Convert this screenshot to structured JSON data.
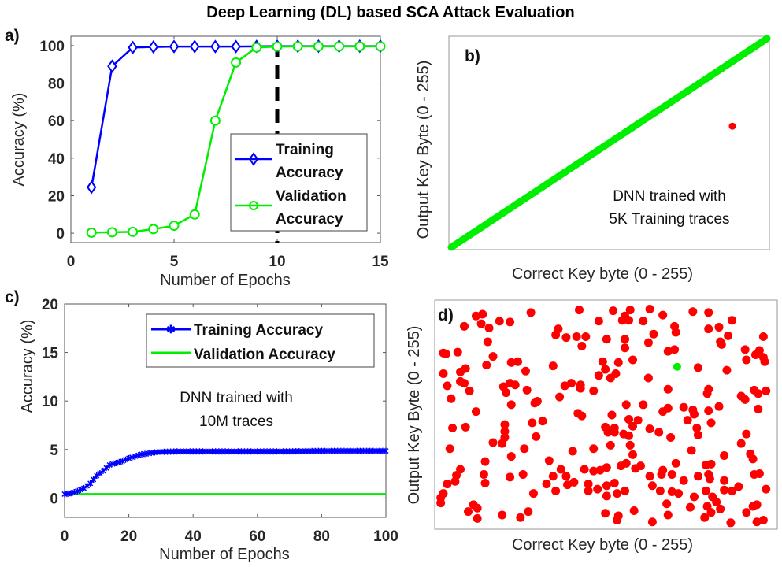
{
  "title": "Deep Learning (DL) based SCA Attack Evaluation",
  "colors": {
    "training": "#0000ff",
    "validation": "#00ee00",
    "wrong": "#ff0000",
    "correct": "#00ee00"
  },
  "chart_data": [
    {
      "panel": "a)",
      "type": "line",
      "xlabel": "Number of Epochs",
      "ylabel": "Accuracy (%)",
      "xlim": [
        0,
        15
      ],
      "ylim": [
        -5,
        105
      ],
      "xticks": [
        0,
        5,
        10,
        15
      ],
      "yticks": [
        0,
        20,
        40,
        60,
        80,
        100
      ],
      "x": [
        1,
        2,
        3,
        4,
        5,
        6,
        7,
        8,
        9,
        10,
        11,
        12,
        13,
        14,
        15
      ],
      "series": [
        {
          "name": "Training Accuracy",
          "legend_lines": [
            "Training",
            "Accuracy"
          ],
          "marker": "diamond",
          "values": [
            24.5,
            89,
            99,
            99.3,
            99.5,
            99.5,
            99.5,
            99.5,
            99.6,
            99.7,
            99.7,
            99.7,
            99.7,
            99.7,
            99.7
          ]
        },
        {
          "name": "Validation Accuracy",
          "legend_lines": [
            "Validation",
            "Accuracy"
          ],
          "marker": "circle",
          "values": [
            0.3,
            0.5,
            0.7,
            2.2,
            4,
            10,
            60,
            91,
            99,
            99.5,
            99.6,
            99.6,
            99.6,
            99.6,
            99.6
          ]
        }
      ],
      "vline": {
        "x": 10,
        "style": "dashed"
      },
      "legend": "right"
    },
    {
      "panel": "b)",
      "type": "scatter",
      "xlabel": "Correct Key byte (0 - 255)",
      "ylabel": "Output Key Byte (0 - 255)",
      "xlim": [
        0,
        255
      ],
      "ylim": [
        0,
        255
      ],
      "annotation": [
        "DNN trained with",
        "5K Training traces"
      ],
      "correct": "diagonal x = y for all key bytes 0-255",
      "wrong_points": [
        [
          227,
          148
        ]
      ]
    },
    {
      "panel": "c)",
      "type": "line",
      "xlabel": "Number of Epochs",
      "ylabel": "Accuracy (%)",
      "xlim": [
        0,
        100
      ],
      "ylim": [
        -2,
        20
      ],
      "xticks": [
        0,
        20,
        40,
        60,
        80,
        100
      ],
      "yticks": [
        0,
        5,
        10,
        15,
        20
      ],
      "annotation": [
        "DNN trained with",
        "10M traces"
      ],
      "legend": "top-right",
      "x": [
        0,
        2,
        4,
        6,
        8,
        10,
        12,
        14,
        16,
        18,
        20,
        22,
        24,
        26,
        28,
        30,
        35,
        40,
        50,
        60,
        70,
        80,
        90,
        100
      ],
      "series": [
        {
          "name": "Training Accuracy",
          "marker": "asterisk",
          "values": [
            0.4,
            0.5,
            0.7,
            1.0,
            1.5,
            2.3,
            2.8,
            3.4,
            3.6,
            3.8,
            4.1,
            4.3,
            4.5,
            4.6,
            4.7,
            4.75,
            4.8,
            4.8,
            4.8,
            4.8,
            4.8,
            4.85,
            4.85,
            4.85
          ]
        },
        {
          "name": "Validation Accuracy",
          "marker": "none",
          "values": [
            0.4,
            0.4,
            0.4,
            0.4,
            0.4,
            0.4,
            0.4,
            0.4,
            0.4,
            0.4,
            0.4,
            0.4,
            0.4,
            0.4,
            0.4,
            0.4,
            0.4,
            0.4,
            0.4,
            0.4,
            0.4,
            0.4,
            0.4,
            0.4
          ]
        }
      ]
    },
    {
      "panel": "d)",
      "type": "scatter",
      "xlabel": "Correct Key byte (0 - 255)",
      "ylabel": "Output Key Byte (0 - 255)",
      "xlim": [
        0,
        255
      ],
      "ylim": [
        0,
        255
      ],
      "correct_points": [
        [
          182,
          183
        ]
      ],
      "wrong_points": [
        [
          28,
          242
        ],
        [
          33,
          244
        ],
        [
          32,
          233
        ],
        [
          38,
          228
        ],
        [
          19,
          230
        ],
        [
          46,
          236
        ],
        [
          54,
          235
        ],
        [
          70,
          246
        ],
        [
          37,
          212
        ],
        [
          3,
          199
        ],
        [
          5,
          198
        ],
        [
          14,
          200
        ],
        [
          41,
          195
        ],
        [
          36,
          185
        ],
        [
          55,
          188
        ],
        [
          60,
          189
        ],
        [
          66,
          178
        ],
        [
          3,
          175
        ],
        [
          16,
          177
        ],
        [
          20,
          181
        ],
        [
          16,
          166
        ],
        [
          19,
          164
        ],
        [
          6,
          161
        ],
        [
          23,
          155
        ],
        [
          9,
          146
        ],
        [
          49,
          160
        ],
        [
          51,
          153
        ],
        [
          54,
          164
        ],
        [
          58,
          162
        ],
        [
          67,
          156
        ],
        [
          55,
          139
        ],
        [
          28,
          131
        ],
        [
          73,
          141
        ],
        [
          75,
          143
        ],
        [
          10,
          112
        ],
        [
          20,
          113
        ],
        [
          50,
          116
        ],
        [
          50,
          108
        ],
        [
          50,
          101
        ],
        [
          41,
          95
        ],
        [
          48,
          94
        ],
        [
          71,
          118
        ],
        [
          79,
          120
        ],
        [
          74,
          102
        ],
        [
          8,
          88
        ],
        [
          65,
          88
        ],
        [
          55,
          79
        ],
        [
          35,
          73
        ],
        [
          16,
          64
        ],
        [
          13,
          57
        ],
        [
          12,
          50
        ],
        [
          6,
          47
        ],
        [
          34,
          58
        ],
        [
          35,
          48
        ],
        [
          54,
          55
        ],
        [
          64,
          58
        ],
        [
          3,
          36
        ],
        [
          1,
          31
        ],
        [
          1,
          25
        ],
        [
          22,
          15
        ],
        [
          26,
          23
        ],
        [
          29,
          19
        ],
        [
          29,
          7
        ],
        [
          48,
          11
        ],
        [
          62,
          8
        ],
        [
          68,
          15
        ],
        [
          72,
          36
        ],
        [
          87,
          184
        ],
        [
          91,
          227
        ],
        [
          89,
          220
        ],
        [
          97,
          217
        ],
        [
          105,
          218
        ],
        [
          112,
          218
        ],
        [
          109,
          207
        ],
        [
          107,
          249
        ],
        [
          122,
          236
        ],
        [
          133,
          248
        ],
        [
          140,
          237
        ],
        [
          142,
          242
        ],
        [
          145,
          237
        ],
        [
          146,
          249
        ],
        [
          128,
          215
        ],
        [
          142,
          215
        ],
        [
          142,
          205
        ],
        [
          125,
          189
        ],
        [
          127,
          180
        ],
        [
          122,
          173
        ],
        [
          131,
          170
        ],
        [
          135,
          175
        ],
        [
          137,
          188
        ],
        [
          148,
          191
        ],
        [
          96,
          161
        ],
        [
          101,
          164
        ],
        [
          108,
          162
        ],
        [
          108,
          158
        ],
        [
          118,
          155
        ],
        [
          92,
          148
        ],
        [
          106,
          129
        ],
        [
          109,
          126
        ],
        [
          132,
          127
        ],
        [
          143,
          139
        ],
        [
          145,
          122
        ],
        [
          152,
          121
        ],
        [
          156,
          139
        ],
        [
          127,
          113
        ],
        [
          134,
          112
        ],
        [
          129,
          107
        ],
        [
          134,
          107
        ],
        [
          141,
          105
        ],
        [
          145,
          103
        ],
        [
          148,
          114
        ],
        [
          146,
          92
        ],
        [
          148,
          81
        ],
        [
          131,
          92
        ],
        [
          118,
          88
        ],
        [
          102,
          85
        ],
        [
          84,
          74
        ],
        [
          93,
          64
        ],
        [
          87,
          56
        ],
        [
          97,
          56
        ],
        [
          82,
          47
        ],
        [
          89,
          39
        ],
        [
          98,
          46
        ],
        [
          103,
          49
        ],
        [
          111,
          64
        ],
        [
          118,
          62
        ],
        [
          123,
          63
        ],
        [
          128,
          66
        ],
        [
          114,
          47
        ],
        [
          114,
          39
        ],
        [
          121,
          41
        ],
        [
          128,
          45
        ],
        [
          134,
          48
        ],
        [
          128,
          33
        ],
        [
          136,
          36
        ],
        [
          142,
          39
        ],
        [
          139,
          68
        ],
        [
          143,
          71
        ],
        [
          150,
          65
        ],
        [
          154,
          68
        ],
        [
          127,
          13
        ],
        [
          137,
          10
        ],
        [
          136,
          5
        ],
        [
          149,
          16
        ],
        [
          156,
          236
        ],
        [
          161,
          250
        ],
        [
          160,
          211
        ],
        [
          164,
          221
        ],
        [
          171,
          243
        ],
        [
          180,
          230
        ],
        [
          181,
          223
        ],
        [
          175,
          201
        ],
        [
          180,
          203
        ],
        [
          160,
          170
        ],
        [
          175,
          157
        ],
        [
          171,
          131
        ],
        [
          175,
          135
        ],
        [
          187,
          136
        ],
        [
          194,
          133
        ],
        [
          195,
          128
        ],
        [
          190,
          121
        ],
        [
          197,
          112
        ],
        [
          198,
          104
        ],
        [
          161,
          111
        ],
        [
          168,
          107
        ],
        [
          177,
          101
        ],
        [
          193,
          86
        ],
        [
          181,
          71
        ],
        [
          171,
          63
        ],
        [
          170,
          58
        ],
        [
          178,
          58
        ],
        [
          161,
          56
        ],
        [
          163,
          45
        ],
        [
          169,
          39
        ],
        [
          178,
          38
        ],
        [
          183,
          36
        ],
        [
          187,
          51
        ],
        [
          174,
          24
        ],
        [
          175,
          11
        ],
        [
          163,
          3
        ],
        [
          192,
          20
        ],
        [
          195,
          32
        ],
        [
          194,
          247
        ],
        [
          206,
          246
        ],
        [
          206,
          227
        ],
        [
          214,
          229
        ],
        [
          221,
          219
        ],
        [
          224,
          237
        ],
        [
          215,
          212
        ],
        [
          216,
          209
        ],
        [
          198,
          182
        ],
        [
          220,
          179
        ],
        [
          234,
          203
        ],
        [
          235,
          191
        ],
        [
          242,
          197
        ],
        [
          245,
          202
        ],
        [
          248,
          194
        ],
        [
          249,
          189
        ],
        [
          248,
          218
        ],
        [
          205,
          152
        ],
        [
          206,
          157
        ],
        [
          214,
          137
        ],
        [
          206,
          132
        ],
        [
          208,
          118
        ],
        [
          231,
          149
        ],
        [
          234,
          145
        ],
        [
          241,
          156
        ],
        [
          244,
          152
        ],
        [
          250,
          155
        ],
        [
          244,
          134
        ],
        [
          235,
          105
        ],
        [
          231,
          94
        ],
        [
          218,
          80
        ],
        [
          238,
          82
        ],
        [
          240,
          76
        ],
        [
          204,
          69
        ],
        [
          208,
          70
        ],
        [
          206,
          58
        ],
        [
          207,
          53
        ],
        [
          198,
          56
        ],
        [
          218,
          51
        ],
        [
          218,
          40
        ],
        [
          224,
          39
        ],
        [
          229,
          44
        ],
        [
          204,
          39
        ],
        [
          209,
          32
        ],
        [
          212,
          26
        ],
        [
          205,
          21
        ],
        [
          215,
          18
        ],
        [
          208,
          14
        ],
        [
          203,
          8
        ],
        [
          223,
          2
        ],
        [
          235,
          14
        ],
        [
          240,
          21
        ],
        [
          243,
          23
        ],
        [
          243,
          3
        ],
        [
          248,
          5
        ],
        [
          241,
          58
        ],
        [
          245,
          59
        ],
        [
          250,
          41
        ]
      ]
    }
  ]
}
